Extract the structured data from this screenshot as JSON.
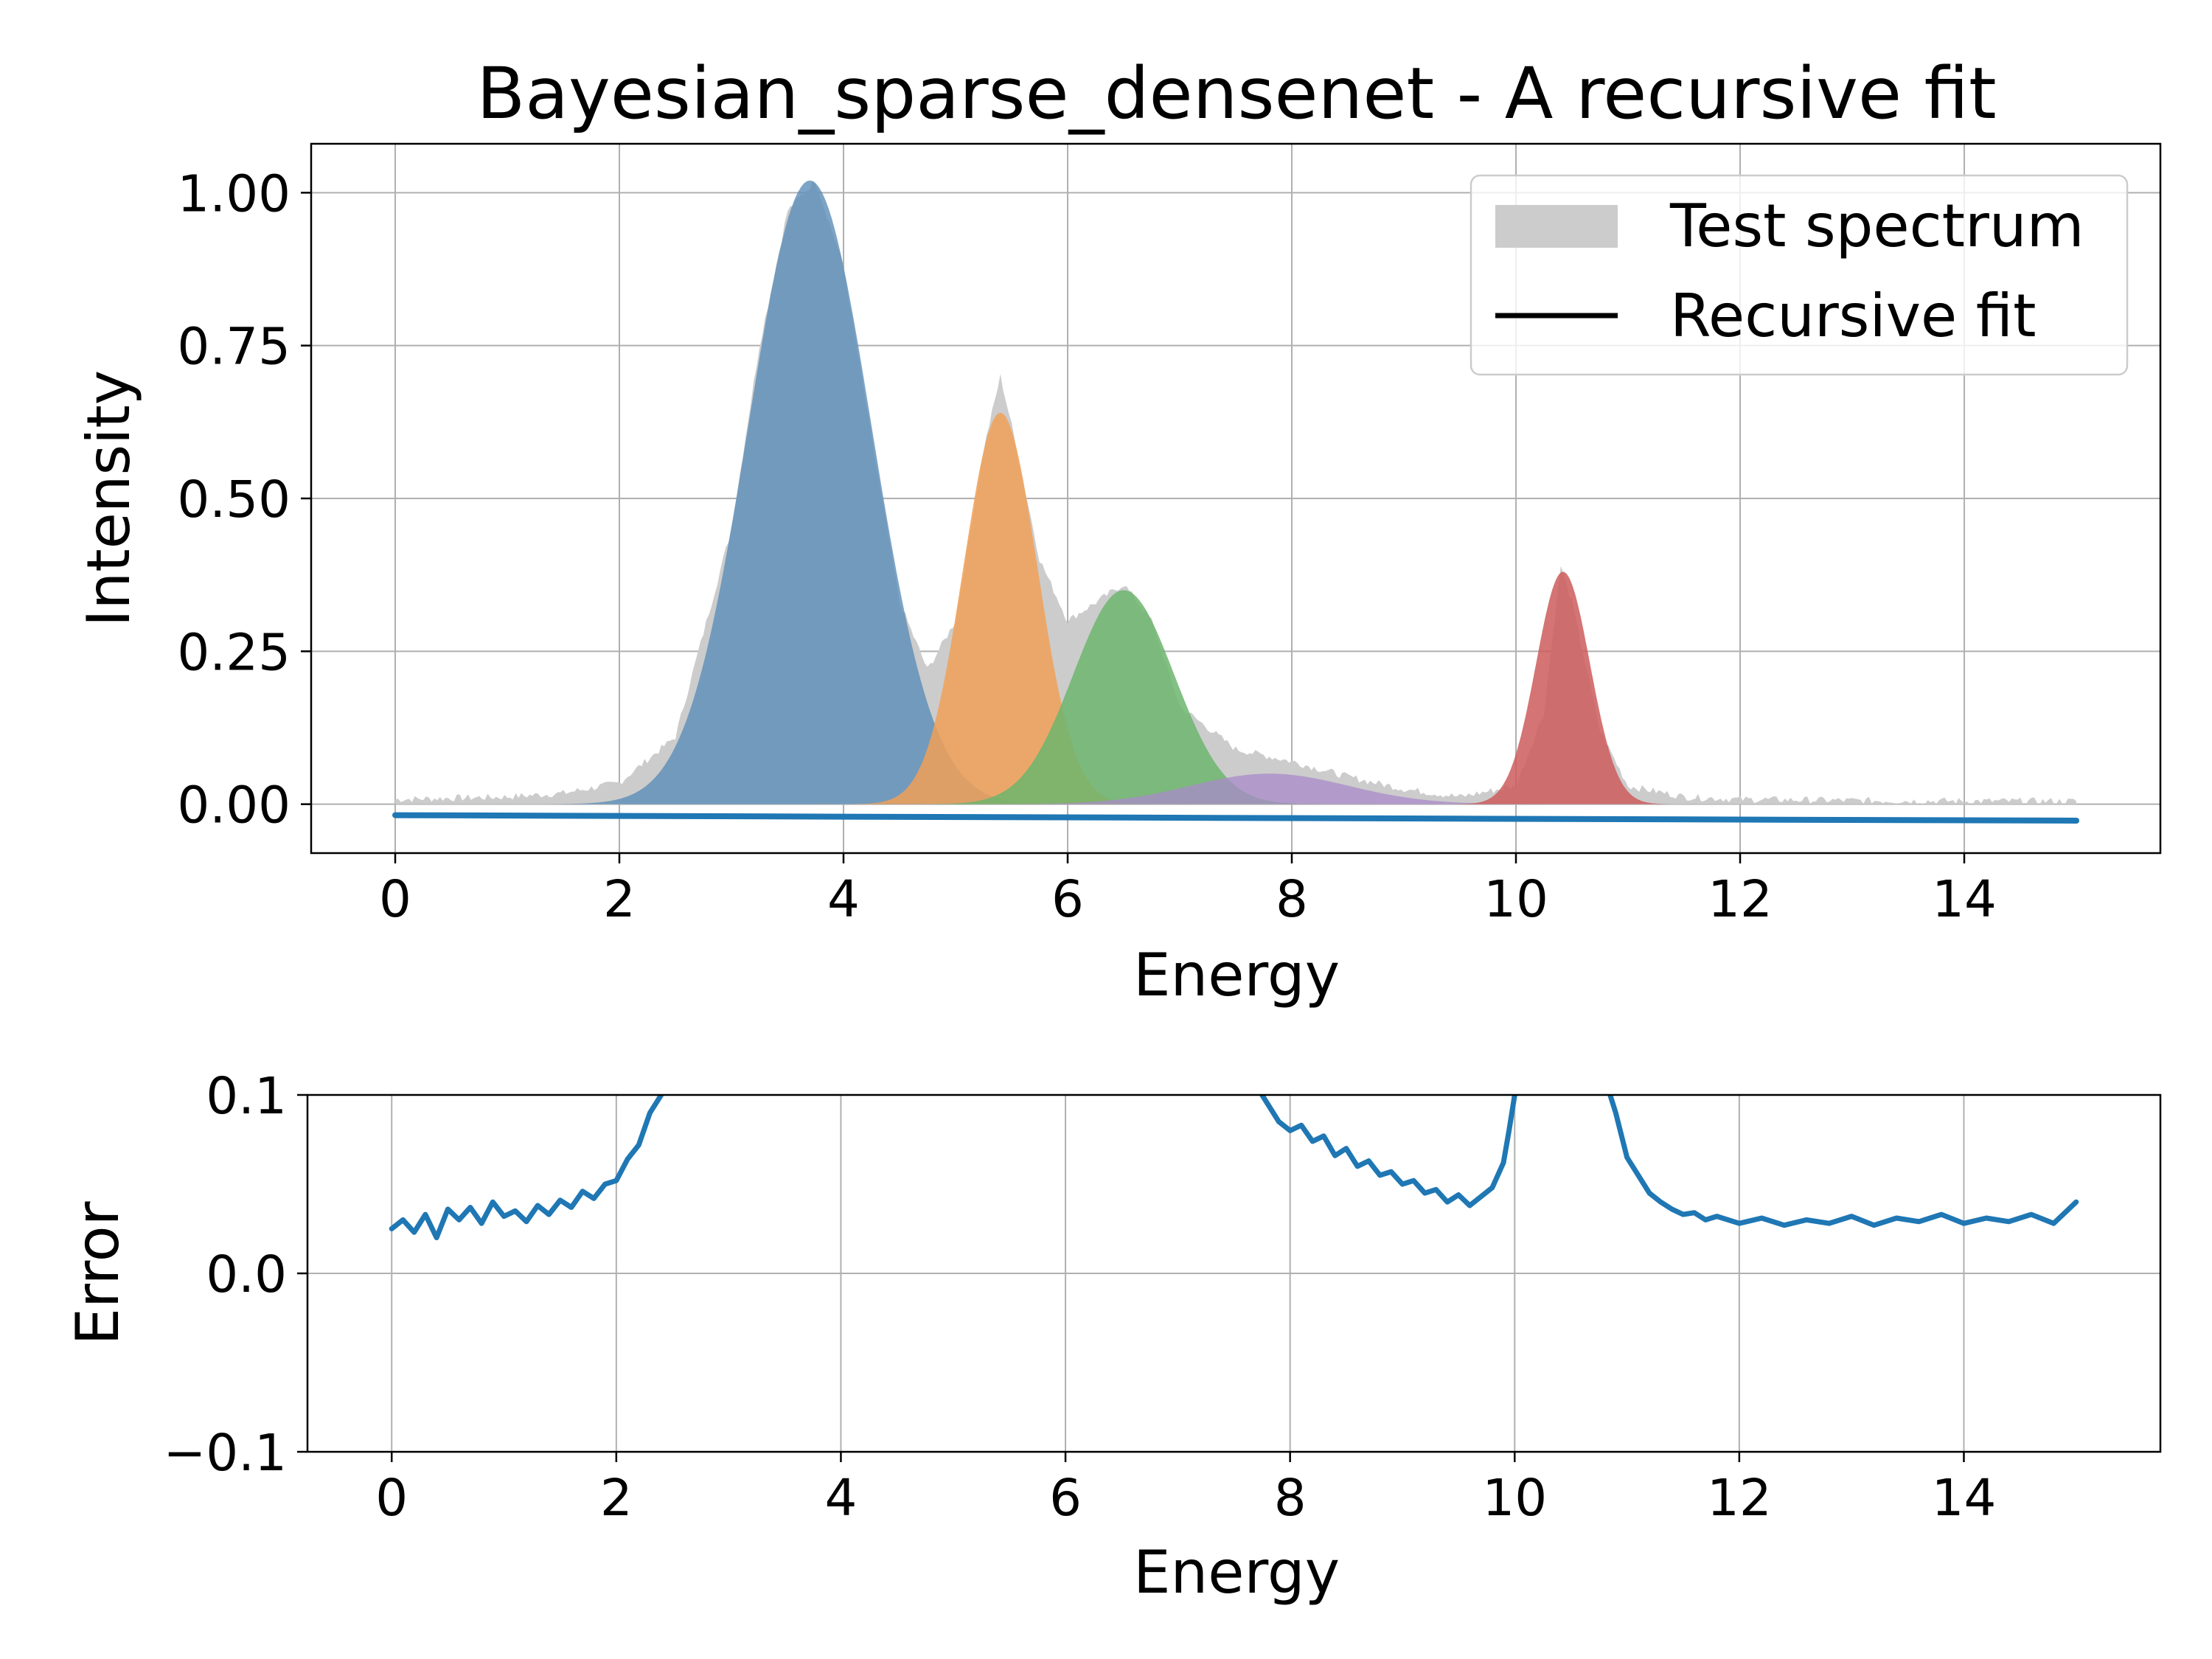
{
  "chart_data": [
    {
      "type": "area",
      "title": "Bayesian_sparse_densenet - A recursive fit",
      "xlabel": "Energy",
      "ylabel": "Intensity",
      "xlim": [
        -0.75,
        15.75
      ],
      "ylim": [
        -0.08,
        1.08
      ],
      "xticks": [
        0,
        2,
        4,
        6,
        8,
        10,
        12,
        14
      ],
      "yticks": [
        0.0,
        0.25,
        0.5,
        0.75,
        1.0
      ],
      "ytick_labels": [
        "0.00",
        "0.25",
        "0.50",
        "0.75",
        "1.00"
      ],
      "grid": true,
      "legend_position": "upper right",
      "legend": [
        {
          "label": "Test spectrum",
          "kind": "patch",
          "color": "#cccccc"
        },
        {
          "label": "Recursive fit",
          "kind": "line",
          "color": "#000000"
        }
      ],
      "test_spectrum": {
        "color": "#cccccc",
        "x": [
          0,
          0.5,
          1,
          1.5,
          2,
          2.5,
          3,
          3.25,
          3.5,
          3.75,
          4,
          4.25,
          4.5,
          4.75,
          5,
          5.25,
          5.4,
          5.5,
          5.75,
          6,
          6.25,
          6.5,
          6.75,
          7,
          7.5,
          8,
          8.5,
          9,
          9.5,
          10,
          10.25,
          10.4,
          10.5,
          10.75,
          11,
          11.5,
          12,
          13,
          14,
          15
        ],
        "y": [
          0.008,
          0.01,
          0.012,
          0.018,
          0.035,
          0.11,
          0.45,
          0.75,
          0.97,
          1.02,
          0.88,
          0.6,
          0.33,
          0.22,
          0.3,
          0.58,
          0.7,
          0.62,
          0.4,
          0.3,
          0.33,
          0.36,
          0.3,
          0.16,
          0.09,
          0.07,
          0.045,
          0.025,
          0.012,
          0.03,
          0.15,
          0.39,
          0.33,
          0.12,
          0.03,
          0.012,
          0.008,
          0.006,
          0.005,
          0.005
        ]
      },
      "components": [
        {
          "color": "#5b8db8",
          "opacity": 0.8,
          "center": 3.7,
          "amplitude": 1.02,
          "width": 0.55
        },
        {
          "color": "#f0a057",
          "opacity": 0.85,
          "center": 5.4,
          "amplitude": 0.64,
          "width": 0.33
        },
        {
          "color": "#6db56d",
          "opacity": 0.85,
          "center": 6.5,
          "amplitude": 0.35,
          "width": 0.45
        },
        {
          "color": "#a98bc9",
          "opacity": 0.75,
          "center": 7.8,
          "amplitude": 0.05,
          "width": 0.7
        },
        {
          "color": "#cd5c5c",
          "opacity": 0.85,
          "center": 10.42,
          "amplitude": 0.38,
          "width": 0.24
        }
      ],
      "fit_line": {
        "color": "#1f77b4",
        "x": [
          0,
          15
        ],
        "y": [
          -0.018,
          -0.027
        ]
      }
    },
    {
      "type": "line",
      "title": "",
      "xlabel": "Energy",
      "ylabel": "Error",
      "xlim": [
        -0.75,
        15.75
      ],
      "ylim": [
        -0.1,
        0.1
      ],
      "xticks": [
        0,
        2,
        4,
        6,
        8,
        10,
        12,
        14
      ],
      "yticks": [
        -0.1,
        0.0,
        0.1
      ],
      "ytick_labels": [
        "−0.1",
        "0.0",
        "0.1"
      ],
      "grid": true,
      "series": [
        {
          "color": "#1f77b4",
          "segments": [
            {
              "x": [
                0,
                0.1,
                0.2,
                0.3,
                0.4,
                0.5,
                0.6,
                0.7,
                0.8,
                0.9,
                1.0,
                1.1,
                1.2,
                1.3,
                1.4,
                1.5,
                1.6,
                1.7,
                1.8,
                1.9,
                2.0,
                2.1,
                2.2,
                2.3,
                2.4
              ],
              "y": [
                0.025,
                0.03,
                0.023,
                0.033,
                0.02,
                0.036,
                0.03,
                0.037,
                0.028,
                0.04,
                0.032,
                0.035,
                0.029,
                0.038,
                0.033,
                0.041,
                0.037,
                0.046,
                0.042,
                0.05,
                0.052,
                0.064,
                0.072,
                0.09,
                0.1
              ]
            },
            {
              "x": [
                7.75,
                7.8,
                7.9,
                8.0,
                8.1,
                8.2,
                8.3,
                8.4,
                8.5,
                8.6,
                8.7,
                8.8,
                8.9,
                9.0,
                9.1,
                9.2,
                9.3,
                9.4,
                9.5,
                9.6,
                9.7,
                9.8,
                9.9,
                9.95,
                10.0
              ],
              "y": [
                0.1,
                0.095,
                0.085,
                0.08,
                0.083,
                0.074,
                0.077,
                0.066,
                0.07,
                0.06,
                0.063,
                0.055,
                0.057,
                0.05,
                0.052,
                0.045,
                0.047,
                0.04,
                0.044,
                0.038,
                0.043,
                0.048,
                0.062,
                0.08,
                0.1
              ]
            },
            {
              "x": [
                10.85,
                10.9,
                11.0,
                11.1,
                11.2,
                11.3,
                11.4,
                11.5,
                11.6,
                11.7,
                11.8,
                12.0,
                12.2,
                12.4,
                12.6,
                12.8,
                13.0,
                13.2,
                13.4,
                13.6,
                13.8,
                14.0,
                14.2,
                14.4,
                14.6,
                14.8,
                15.0
              ],
              "y": [
                0.1,
                0.09,
                0.065,
                0.055,
                0.045,
                0.04,
                0.036,
                0.033,
                0.034,
                0.03,
                0.032,
                0.028,
                0.031,
                0.027,
                0.03,
                0.028,
                0.032,
                0.027,
                0.031,
                0.029,
                0.033,
                0.028,
                0.031,
                0.029,
                0.033,
                0.028,
                0.04
              ]
            }
          ]
        }
      ]
    }
  ]
}
